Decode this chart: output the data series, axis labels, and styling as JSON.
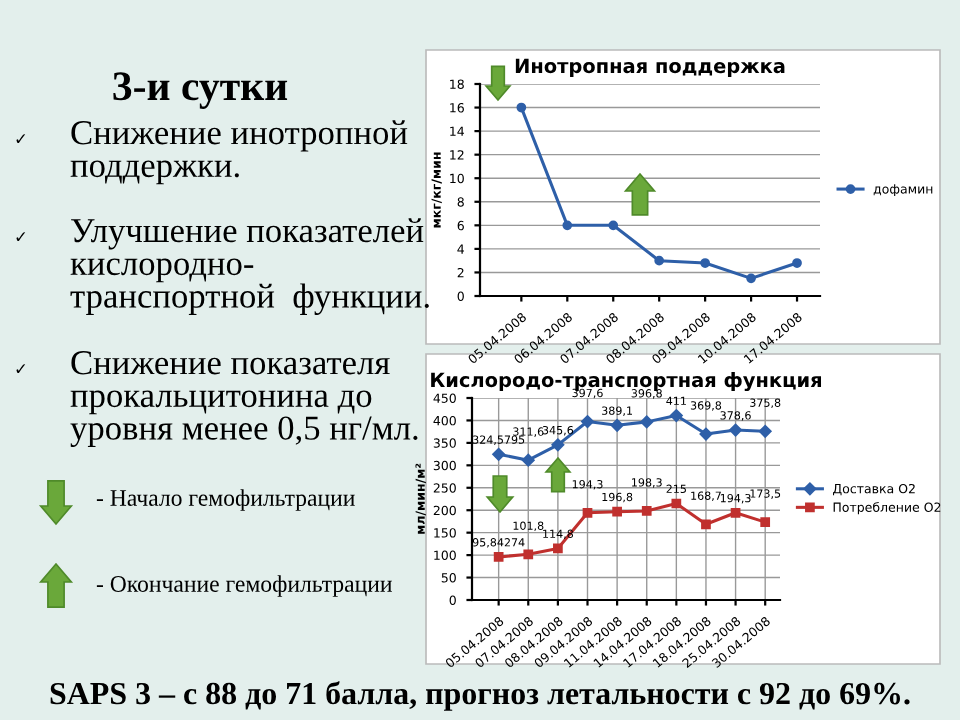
{
  "chart_data": [
    {
      "type": "other",
      "title": "3-и сутки",
      "annotations": [
        "✓ Снижение инотропной\nподдержки.",
        "✓ Улучшение показателей\nкислородно-\nтранспортной  функции.",
        "✓ Снижение показателя\nпрокальцитонина до\nуровня менее 0,5 нг/мл.",
        "- Начало гемофильтрации",
        "- Окончание гемофильтрации",
        "SAPS 3 – с 88 до 71 балла, прогноз летальности с 92 до 69%."
      ]
    },
    {
      "type": "line",
      "title": "Инотропная поддержка",
      "ylabel": "мкг/кг/мин",
      "categories": [
        "05.04.2008",
        "06.04.2008",
        "07.04.2008",
        "08.04.2008",
        "09.04.2008",
        "10.04.2008",
        "17.04.2008"
      ],
      "series": [
        {
          "name": "дофамин",
          "color": "#2e5fa8",
          "values": [
            16,
            6,
            6,
            3,
            2.8,
            1.5,
            2.8
          ]
        }
      ],
      "ylim": [
        0,
        18
      ],
      "yticks": [
        0,
        2,
        4,
        6,
        8,
        10,
        12,
        14,
        16,
        18
      ],
      "grid": "y",
      "legend": "right",
      "marker": "circle",
      "line_style": "solid"
    },
    {
      "type": "line",
      "title": "Кислородо-транспортная функция",
      "ylabel": "мл/мин/м²",
      "categories": [
        "05.04.2008",
        "07.04.2008",
        "08.04.2008",
        "09.04.2008",
        "11.04.2008",
        "14.04.2008",
        "17.04.2008",
        "18.04.2008",
        "25.04.2008",
        "30.04.2008"
      ],
      "series": [
        {
          "name": "Доставка О2",
          "color": "#2e5fa8",
          "marker": "diamond",
          "values": [
            324.5795,
            311.6,
            345.6,
            397.6,
            389.1,
            396.8,
            411,
            369.8,
            378.6,
            375.8
          ],
          "value_labels": [
            "324,5795",
            "311,6",
            "345,6",
            "397,6",
            "389,1",
            "396,8",
            "411",
            "369,8",
            "378,6",
            "375,8"
          ]
        },
        {
          "name": "Потребление О2",
          "color": "#c0302e",
          "marker": "square",
          "values": [
            95.84274,
            101.8,
            114.8,
            194.3,
            196.8,
            198.3,
            215,
            168.7,
            194.3,
            173.5
          ],
          "value_labels": [
            "95,84274",
            "101,8",
            "114,8",
            "194,3",
            "196,8",
            "198,3",
            "215",
            "168,7",
            "194,3",
            "173,5"
          ]
        }
      ],
      "ylim": [
        0,
        450
      ],
      "yticks": [
        0,
        50,
        100,
        150,
        200,
        250,
        300,
        350,
        400,
        450
      ],
      "grid": true,
      "legend": "right",
      "line_style": "solid"
    }
  ]
}
